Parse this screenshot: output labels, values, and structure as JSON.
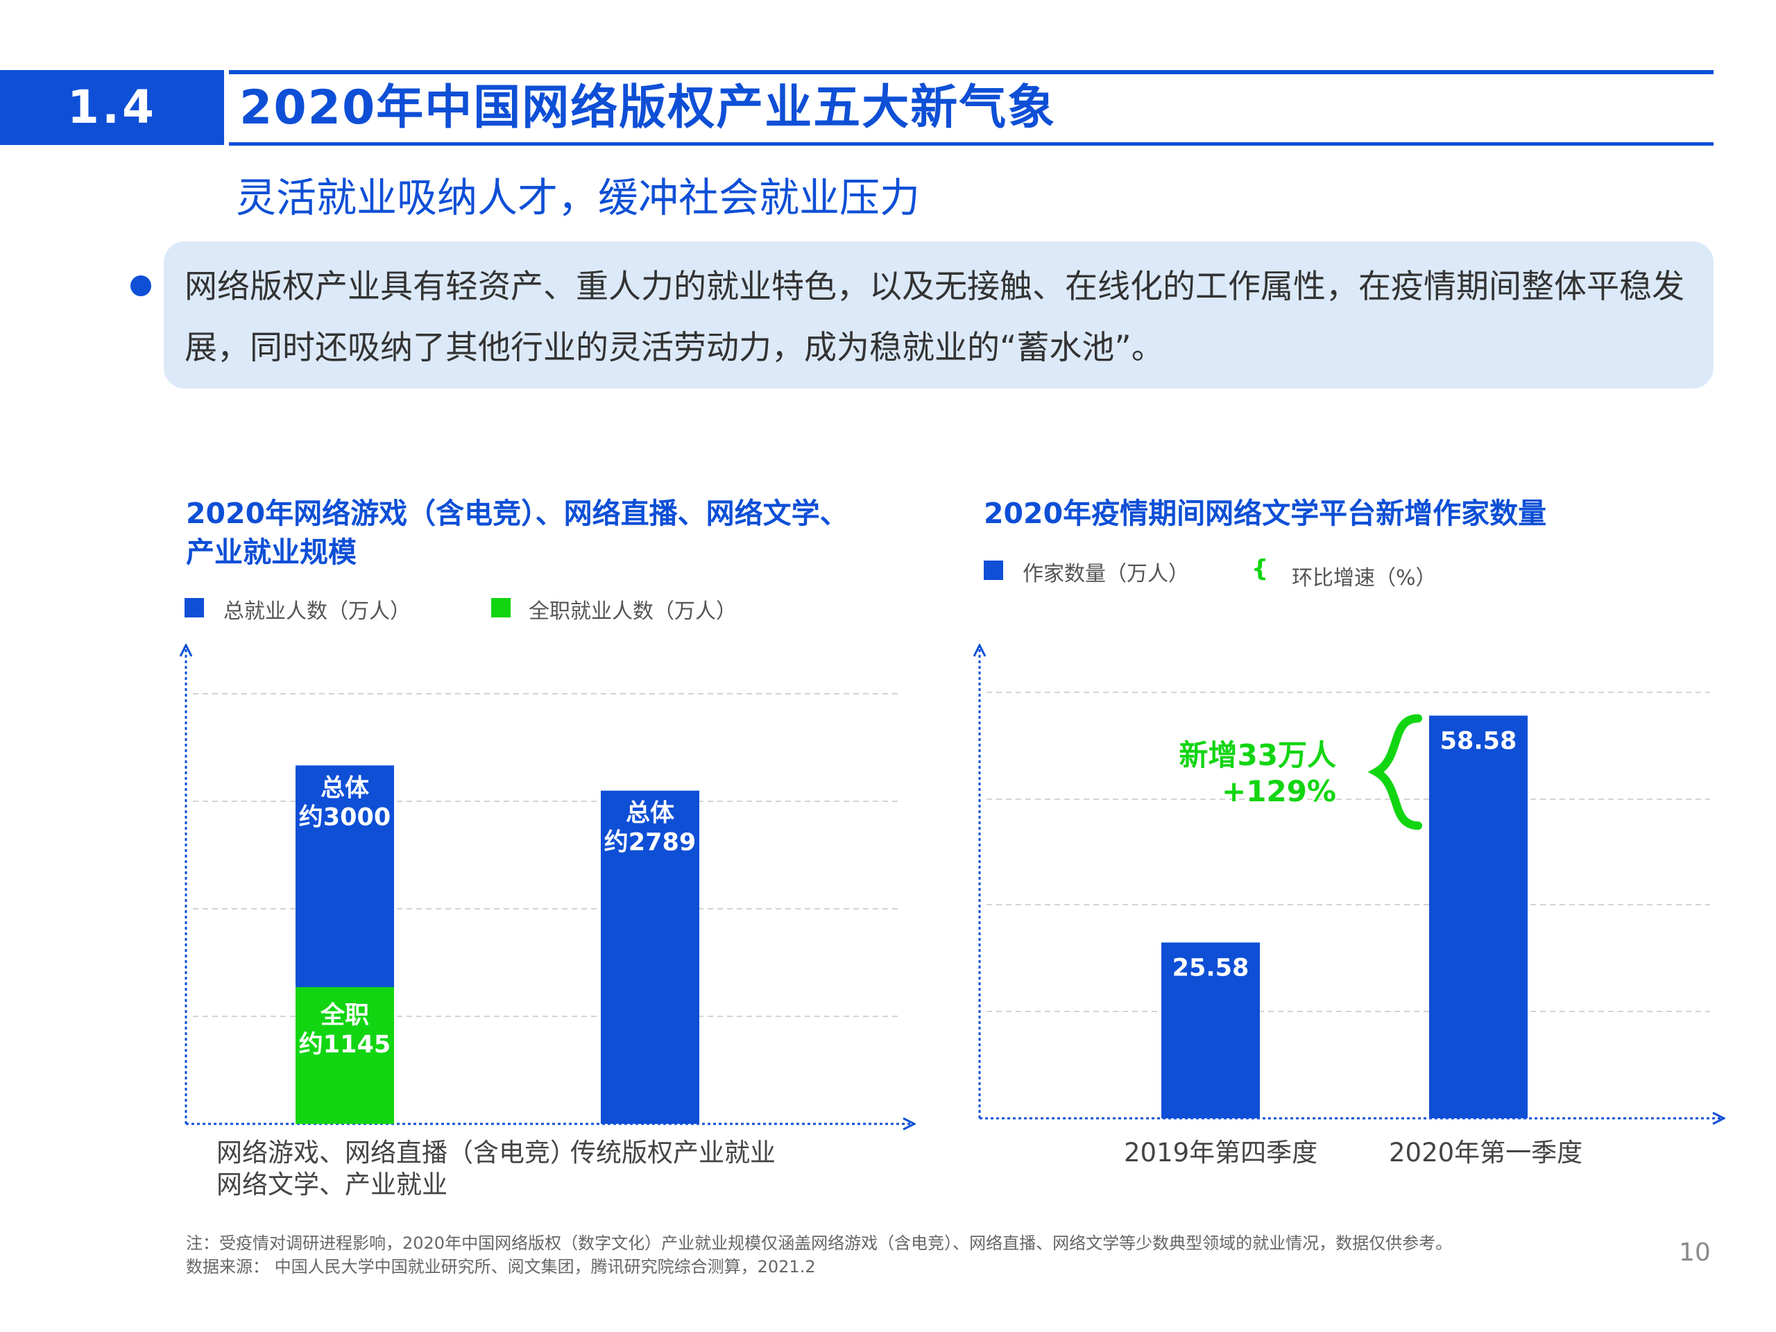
{
  "header": {
    "section_number": "1.4",
    "title": "2020年中国网络版权产业五大新气象"
  },
  "subtitle": "灵活就业吸纳人才，缓冲社会就业压力",
  "bullet": {
    "text": "网络版权产业具有轻资产、重人力的就业特色，以及无接触、在线化的工作属性，在疫情期间整体平稳发展，同时还吸纳了其他行业的灵活劳动力，成为稳就业的“蓄水池”。"
  },
  "colors": {
    "primary_blue": "#0e4fd6",
    "bright_green": "#12d512",
    "box_bg": "#dce9f8"
  },
  "chart_data": [
    {
      "type": "bar",
      "title_line1": "2020年网络游戏（含电竞）、网络直播、网络文学、",
      "title_line2": "产业就业规模",
      "legend": [
        {
          "name": "总就业人数（万人）",
          "color": "#0e4fd6"
        },
        {
          "name": "全职就业人数（万人）",
          "color": "#12d512"
        }
      ],
      "categories": [
        [
          "网络游戏、网络直播（含电竞）",
          "网络文学、产业就业"
        ],
        [
          "传统版权产业就业"
        ]
      ],
      "series": [
        {
          "name": "总就业人数（万人）",
          "values": [
            3000,
            2789
          ]
        },
        {
          "name": "全职就业人数（万人）",
          "values": [
            1145,
            null
          ]
        }
      ],
      "bar_labels": [
        {
          "lines": [
            "总体",
            "约3000"
          ]
        },
        {
          "lines": [
            "总体",
            "约2789"
          ]
        }
      ],
      "green_label": {
        "lines": [
          "全职",
          "约1145"
        ]
      },
      "ylim": [
        0,
        3600
      ],
      "grid": true
    },
    {
      "type": "bar",
      "title": "2020年疫情期间网络文学平台新增作家数量",
      "legend": [
        {
          "name": "作家数量（万人）",
          "color": "#0e4fd6"
        },
        {
          "name": "环比增速（%）",
          "color": "#12d512",
          "symbol": "{"
        }
      ],
      "categories": [
        "2019年第四季度",
        "2020年第一季度"
      ],
      "values": [
        25.58,
        58.58
      ],
      "value_labels": [
        "25.58",
        "58.58"
      ],
      "annotation": {
        "lines": [
          "新增33万人",
          "+129%"
        ]
      },
      "ylim": [
        0,
        66
      ],
      "grid": true
    }
  ],
  "footnotes": {
    "note": "注：受疫情对调研进程影响，2020年中国网络版权（数字文化）产业就业规模仅涵盖网络游戏（含电竞）、网络直播、网络文学等少数典型领域的就业情况，数据仅供参考。",
    "source": "数据来源：  中国人民大学中国就业研究所、阅文集团，腾讯研究院综合测算，2021.2"
  },
  "page_number": "10"
}
